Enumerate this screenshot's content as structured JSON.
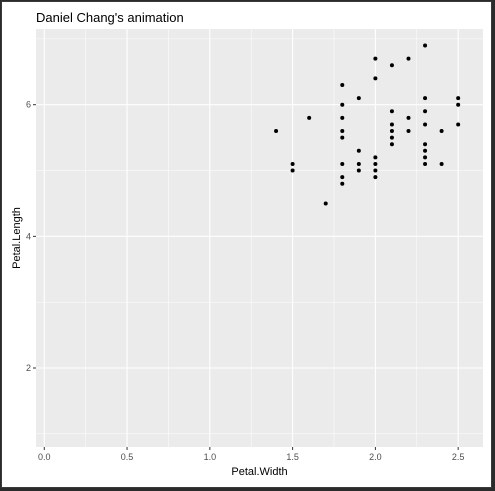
{
  "chart_data": {
    "type": "scatter",
    "title": "Daniel Chang's animation",
    "xlabel": "Petal.Width",
    "ylabel": "Petal.Length",
    "xlim": [
      -0.05,
      2.65
    ],
    "ylim": [
      0.8,
      7.15
    ],
    "x_ticks": [
      0.0,
      0.5,
      1.0,
      1.5,
      2.0,
      2.5
    ],
    "x_tick_labels": [
      "0.0",
      "0.5",
      "1.0",
      "1.5",
      "2.0",
      "2.5"
    ],
    "y_ticks": [
      2,
      4,
      6
    ],
    "y_tick_labels": [
      "2",
      "4",
      "6"
    ],
    "grid": true,
    "panel_color": "#ebebeb",
    "grid_color": "#ffffff",
    "point_color": "#000000",
    "points": [
      {
        "x": 1.4,
        "y": 5.6
      },
      {
        "x": 1.5,
        "y": 5.0
      },
      {
        "x": 1.5,
        "y": 5.1
      },
      {
        "x": 1.6,
        "y": 5.8
      },
      {
        "x": 1.7,
        "y": 4.5
      },
      {
        "x": 1.8,
        "y": 4.8
      },
      {
        "x": 1.8,
        "y": 4.9
      },
      {
        "x": 1.8,
        "y": 5.1
      },
      {
        "x": 1.8,
        "y": 5.5
      },
      {
        "x": 1.8,
        "y": 5.6
      },
      {
        "x": 1.8,
        "y": 5.8
      },
      {
        "x": 1.8,
        "y": 6.0
      },
      {
        "x": 1.8,
        "y": 6.3
      },
      {
        "x": 1.9,
        "y": 5.0
      },
      {
        "x": 1.9,
        "y": 5.1
      },
      {
        "x": 1.9,
        "y": 5.3
      },
      {
        "x": 1.9,
        "y": 6.1
      },
      {
        "x": 2.0,
        "y": 4.9
      },
      {
        "x": 2.0,
        "y": 5.0
      },
      {
        "x": 2.0,
        "y": 5.1
      },
      {
        "x": 2.0,
        "y": 5.2
      },
      {
        "x": 2.0,
        "y": 6.4
      },
      {
        "x": 2.0,
        "y": 6.7
      },
      {
        "x": 2.1,
        "y": 5.4
      },
      {
        "x": 2.1,
        "y": 5.5
      },
      {
        "x": 2.1,
        "y": 5.6
      },
      {
        "x": 2.1,
        "y": 5.7
      },
      {
        "x": 2.1,
        "y": 5.9
      },
      {
        "x": 2.1,
        "y": 6.6
      },
      {
        "x": 2.2,
        "y": 5.6
      },
      {
        "x": 2.2,
        "y": 5.8
      },
      {
        "x": 2.2,
        "y": 6.7
      },
      {
        "x": 2.3,
        "y": 5.1
      },
      {
        "x": 2.3,
        "y": 5.2
      },
      {
        "x": 2.3,
        "y": 5.3
      },
      {
        "x": 2.3,
        "y": 5.4
      },
      {
        "x": 2.3,
        "y": 5.7
      },
      {
        "x": 2.3,
        "y": 5.9
      },
      {
        "x": 2.3,
        "y": 6.1
      },
      {
        "x": 2.3,
        "y": 6.9
      },
      {
        "x": 2.4,
        "y": 5.1
      },
      {
        "x": 2.4,
        "y": 5.6
      },
      {
        "x": 2.5,
        "y": 5.7
      },
      {
        "x": 2.5,
        "y": 6.0
      },
      {
        "x": 2.5,
        "y": 6.1
      }
    ]
  }
}
